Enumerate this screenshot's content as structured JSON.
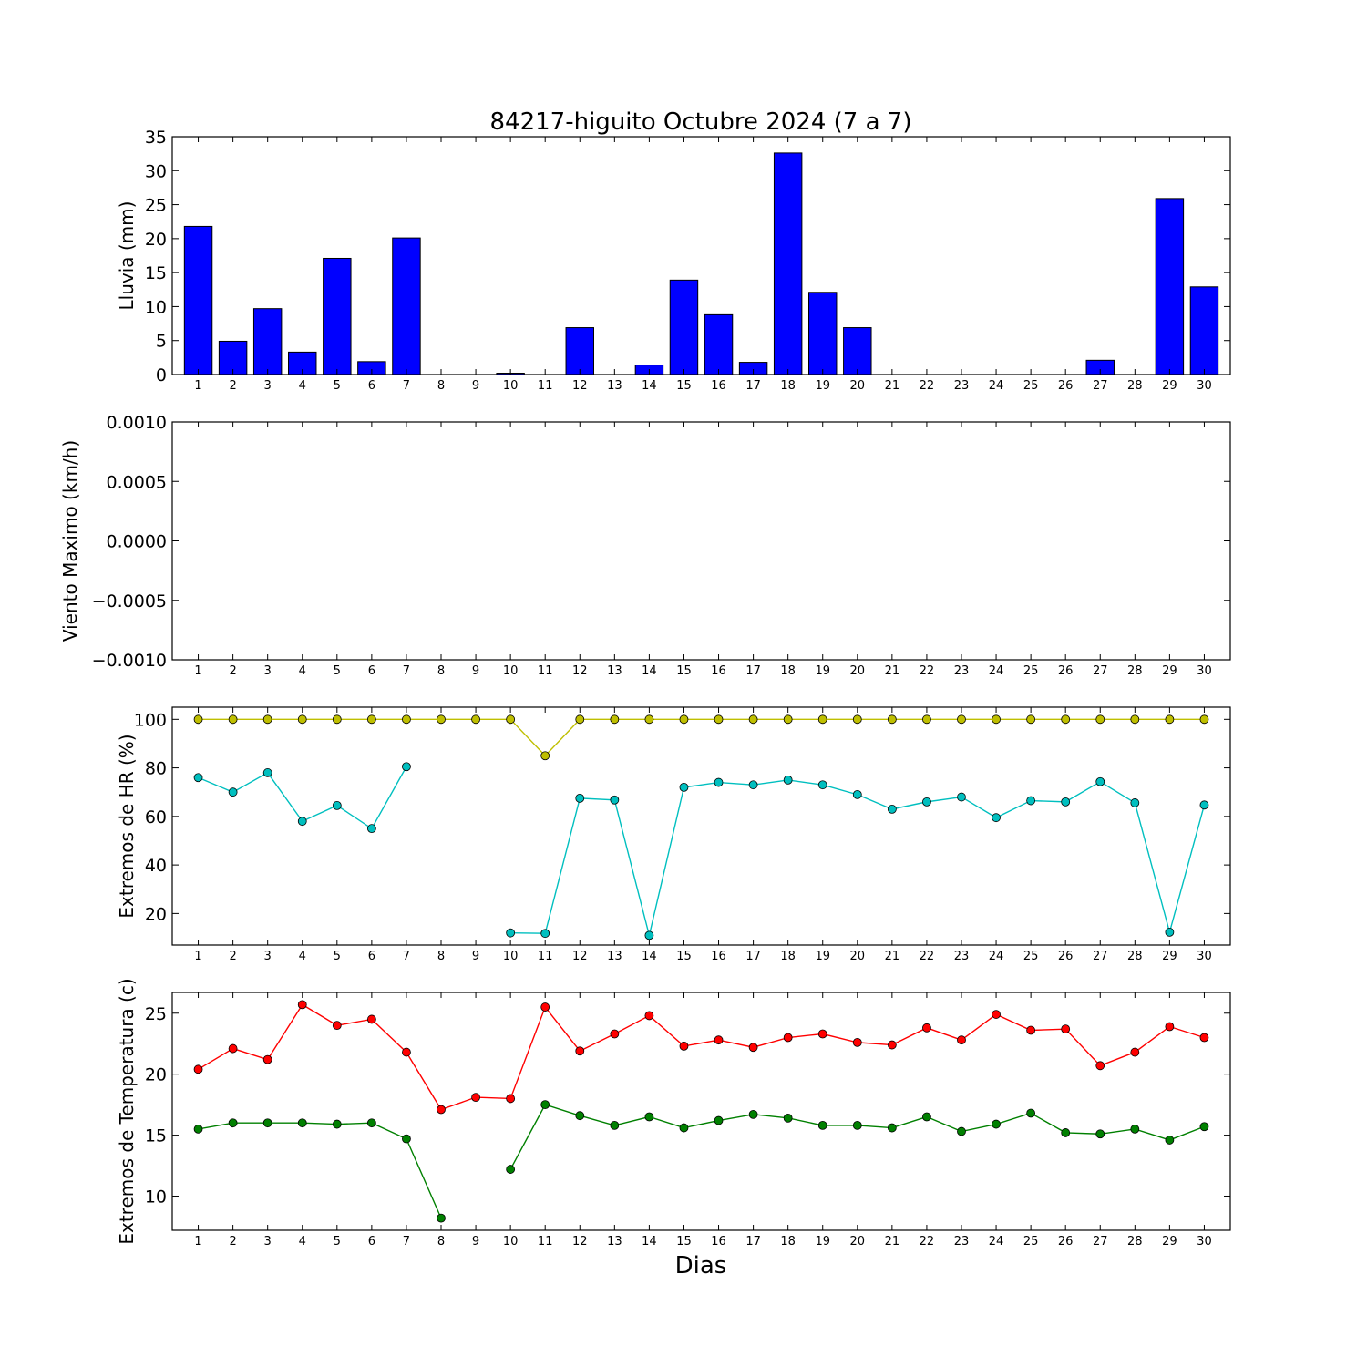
{
  "title": "84217-higuito Octubre 2024  (7 a 7)",
  "xlabel": "Dias",
  "chart_data": [
    {
      "id": "lluvia",
      "type": "bar",
      "ylabel": "Lluvia (mm)",
      "ylim": [
        0,
        35
      ],
      "yticks": [
        "0",
        "5",
        "10",
        "15",
        "20",
        "25",
        "30",
        "35"
      ],
      "categories": [
        "1",
        "2",
        "3",
        "4",
        "5",
        "6",
        "7",
        "8",
        "9",
        "10",
        "11",
        "12",
        "13",
        "14",
        "15",
        "16",
        "17",
        "18",
        "19",
        "20",
        "21",
        "22",
        "23",
        "24",
        "25",
        "26",
        "27",
        "28",
        "29",
        "30"
      ],
      "series": [
        {
          "color": "#0000ff",
          "values": [
            21.8,
            4.9,
            9.7,
            3.3,
            17.1,
            1.9,
            20.1,
            0,
            0,
            0.2,
            0,
            6.9,
            0,
            1.4,
            13.9,
            8.8,
            1.8,
            32.6,
            12.1,
            6.9,
            0,
            0,
            0,
            0,
            0,
            0,
            2.1,
            0,
            25.9,
            12.9
          ]
        }
      ]
    },
    {
      "id": "viento",
      "type": "line",
      "ylabel": "Viento Maximo (km/h)",
      "ylim": [
        -0.001,
        0.001
      ],
      "yticks": [
        "−0.0010",
        "−0.0005",
        "0.0000",
        "0.0005",
        "0.0010"
      ],
      "categories": [
        "1",
        "2",
        "3",
        "4",
        "5",
        "6",
        "7",
        "8",
        "9",
        "10",
        "11",
        "12",
        "13",
        "14",
        "15",
        "16",
        "17",
        "18",
        "19",
        "20",
        "21",
        "22",
        "23",
        "24",
        "25",
        "26",
        "27",
        "28",
        "29",
        "30"
      ],
      "series": []
    },
    {
      "id": "hr",
      "type": "line",
      "ylabel": "Extremos de HR (%)",
      "ylim": [
        7,
        105
      ],
      "yticks": [
        "20",
        "40",
        "60",
        "80",
        "100"
      ],
      "ytick_values": [
        20,
        40,
        60,
        80,
        100
      ],
      "categories": [
        "1",
        "2",
        "3",
        "4",
        "5",
        "6",
        "7",
        "8",
        "9",
        "10",
        "11",
        "12",
        "13",
        "14",
        "15",
        "16",
        "17",
        "18",
        "19",
        "20",
        "21",
        "22",
        "23",
        "24",
        "25",
        "26",
        "27",
        "28",
        "29",
        "30"
      ],
      "series": [
        {
          "color": "#bfbf00",
          "values": [
            100,
            100,
            100,
            100,
            100,
            100,
            100,
            100,
            100,
            100,
            85,
            100,
            100,
            100,
            100,
            100,
            100,
            100,
            100,
            100,
            100,
            100,
            100,
            100,
            100,
            100,
            100,
            100,
            100,
            100
          ]
        },
        {
          "color": "#00bfbf",
          "values": [
            76,
            70,
            78,
            58,
            64.5,
            55,
            80.5,
            null,
            null,
            12,
            11.8,
            67.5,
            66.8,
            11,
            72,
            74,
            73,
            75,
            73,
            69,
            63,
            66,
            68,
            59.5,
            66.5,
            66,
            74.3,
            65.6,
            12.3,
            64.7
          ]
        }
      ]
    },
    {
      "id": "temp",
      "type": "line",
      "ylabel": "Extremos de Temperatura (c)",
      "ylim": [
        7.2,
        26.7
      ],
      "yticks": [
        "10",
        "15",
        "20",
        "25"
      ],
      "ytick_values": [
        10,
        15,
        20,
        25
      ],
      "categories": [
        "1",
        "2",
        "3",
        "4",
        "5",
        "6",
        "7",
        "8",
        "9",
        "10",
        "11",
        "12",
        "13",
        "14",
        "15",
        "16",
        "17",
        "18",
        "19",
        "20",
        "21",
        "22",
        "23",
        "24",
        "25",
        "26",
        "27",
        "28",
        "29",
        "30"
      ],
      "series": [
        {
          "color": "#ff0000",
          "values": [
            20.4,
            22.1,
            21.2,
            25.7,
            24,
            24.5,
            21.8,
            17.1,
            18.1,
            18,
            25.5,
            21.9,
            23.3,
            24.8,
            22.3,
            22.8,
            22.2,
            23,
            23.3,
            22.6,
            22.4,
            23.8,
            22.8,
            24.9,
            23.6,
            23.7,
            20.7,
            21.8,
            23.9,
            23
          ]
        },
        {
          "color": "#008000",
          "values": [
            15.5,
            16,
            16,
            16,
            15.9,
            16,
            14.7,
            8.2,
            null,
            12.2,
            17.5,
            16.6,
            15.8,
            16.5,
            15.6,
            16.2,
            16.7,
            16.4,
            15.8,
            15.8,
            15.6,
            16.5,
            15.3,
            15.9,
            16.8,
            15.2,
            15.1,
            15.5,
            14.6,
            15.7
          ]
        }
      ]
    }
  ]
}
